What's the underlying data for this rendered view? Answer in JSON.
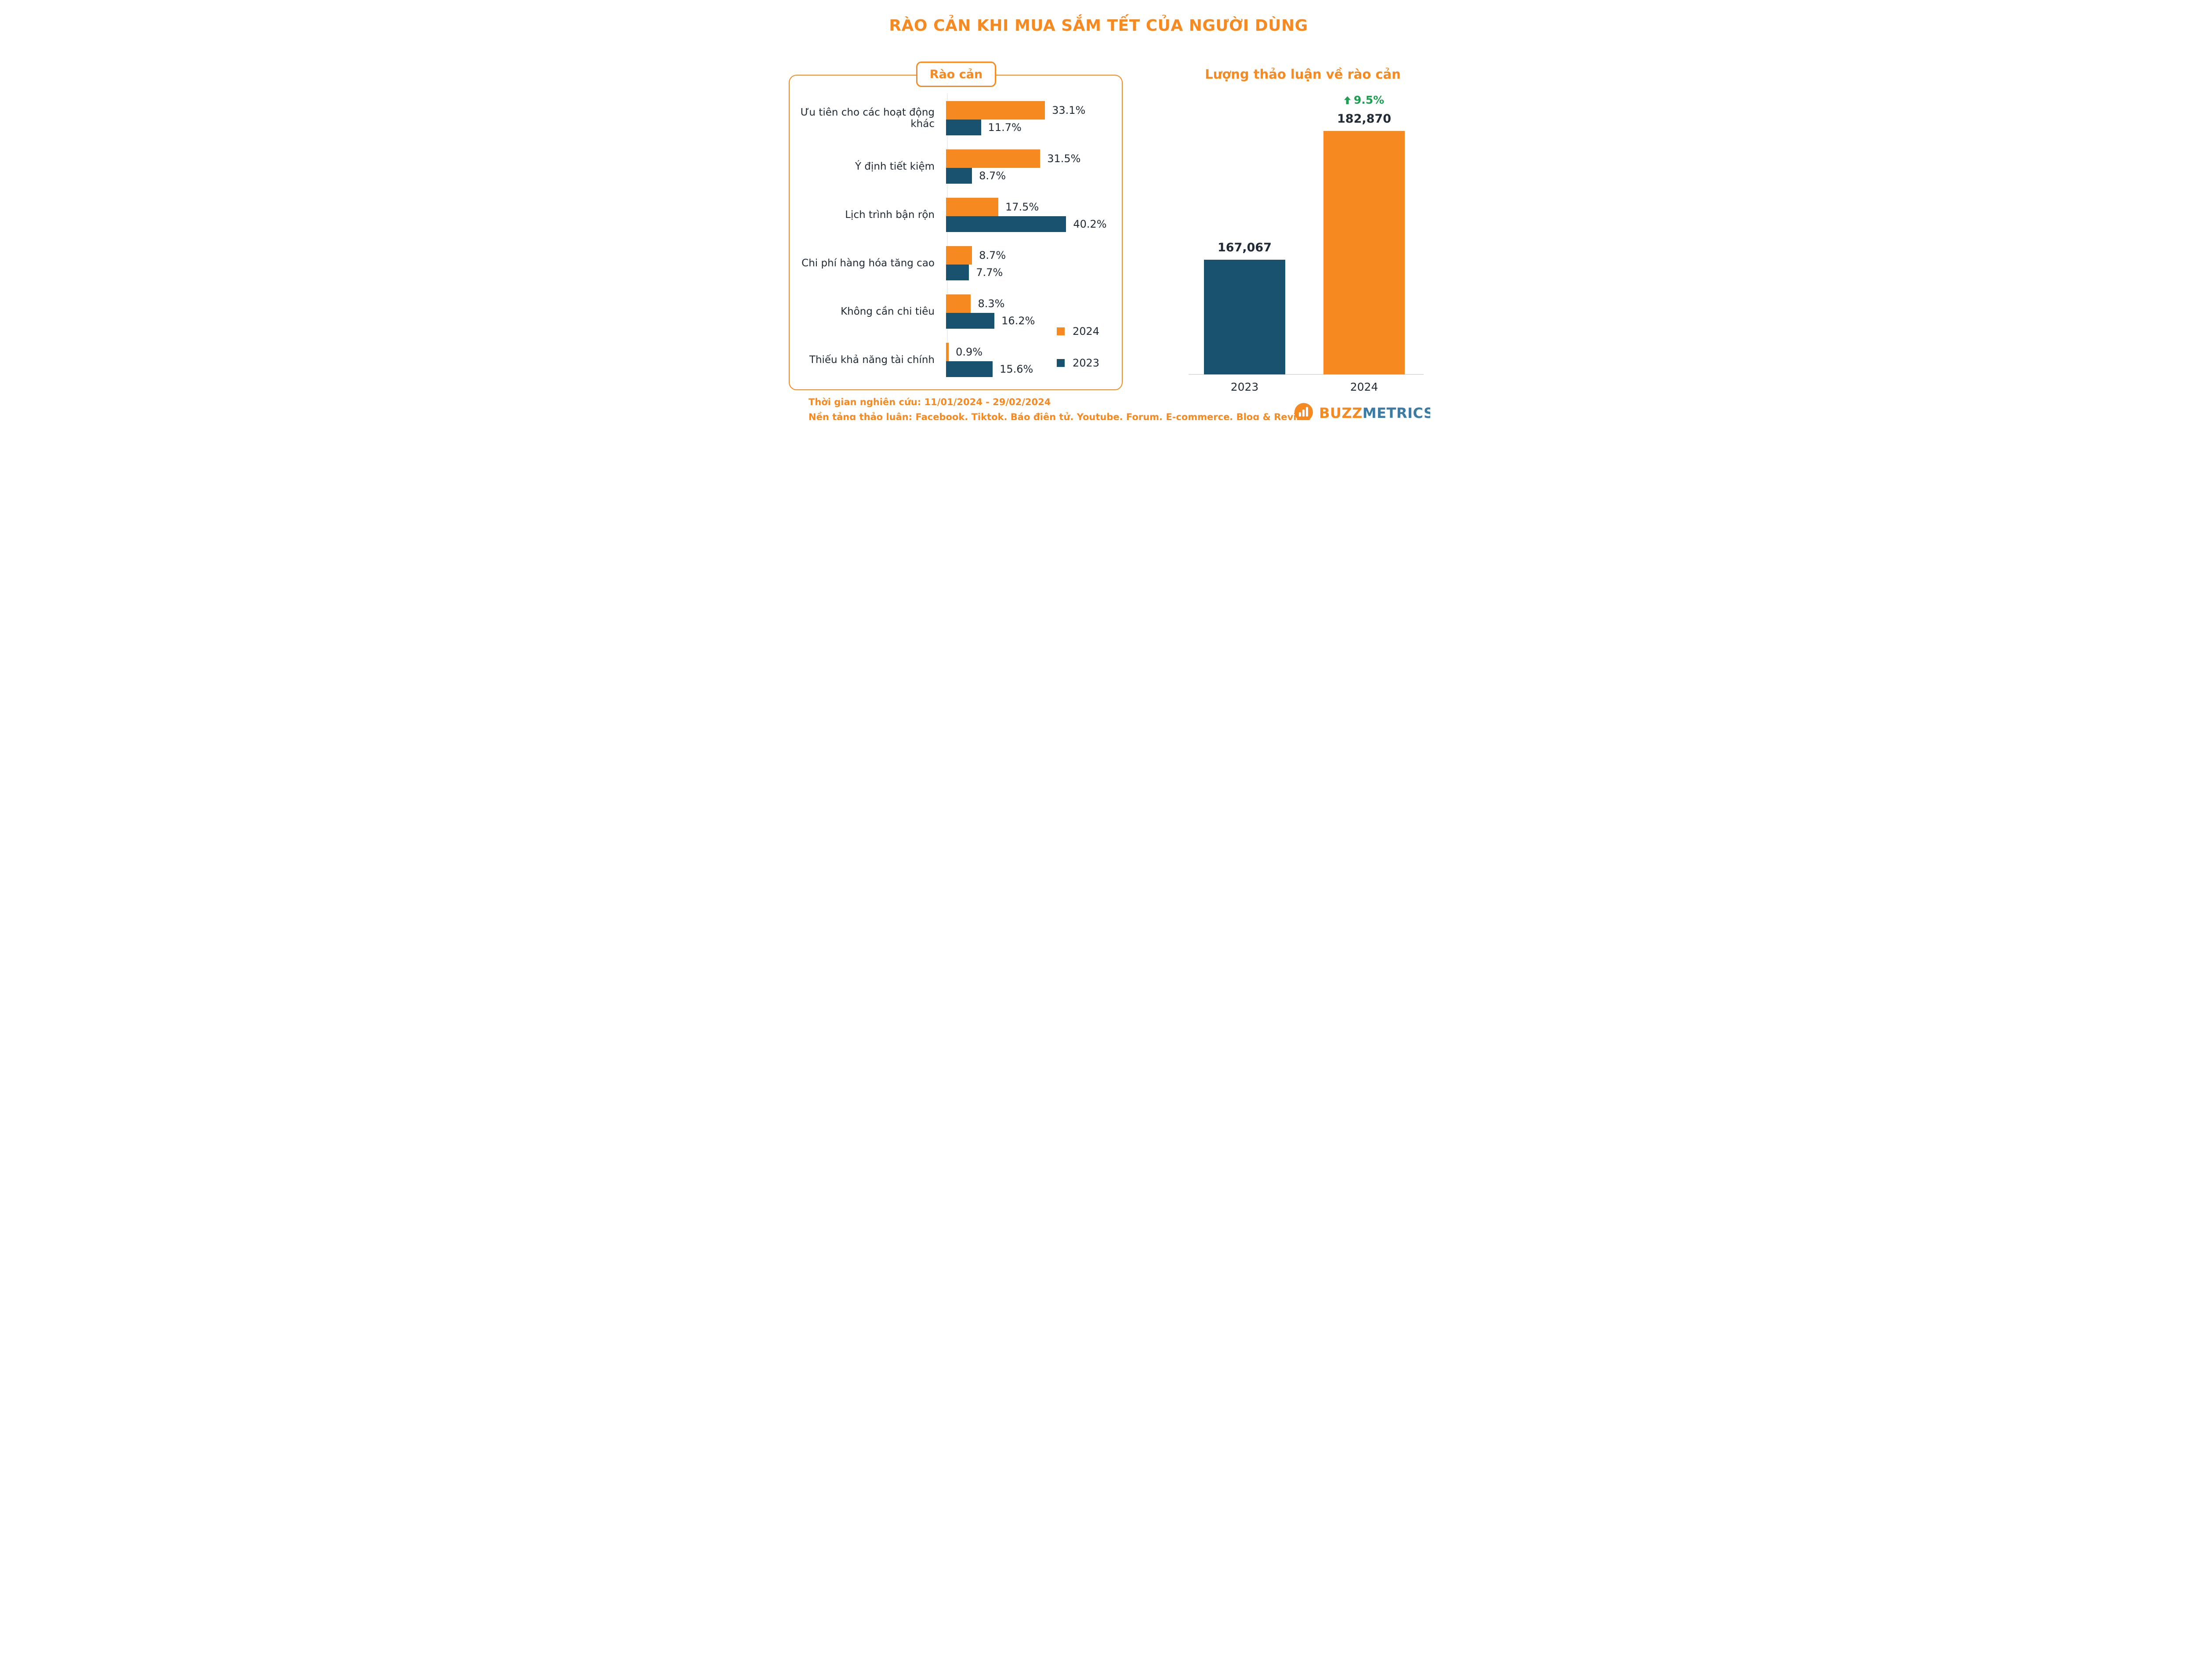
{
  "page_title": "RÀO CẢN KHI MUA SẮM TẾT CỦA NGƯỜI DÙNG",
  "colors": {
    "orange": "#F6891F",
    "navy": "#19526E",
    "ink": "#212B36",
    "green": "#1E9E50",
    "logo_blue": "#3A7CA5",
    "axis_gray": "#DCDFE2"
  },
  "left_chart": {
    "badge_label": "Rào cản"
  },
  "right_chart": {
    "title": "Lượng thảo luận về rào cản"
  },
  "legend": [
    {
      "label": "2024",
      "color": "#F6891F"
    },
    {
      "label": "2023",
      "color": "#19526E"
    }
  ],
  "chart_data": [
    {
      "type": "bar",
      "orientation": "horizontal",
      "title": "Rào cản",
      "categories": [
        "Ưu tiên cho các hoạt động khác",
        "Ý định tiết kiệm",
        "Lịch trình bận rộn",
        "Chi phí hàng hóa tăng cao",
        "Không cần chi tiêu",
        "Thiếu khả năng tài chính"
      ],
      "series": [
        {
          "name": "2024",
          "color": "#F6891F",
          "values": [
            33.1,
            31.5,
            17.5,
            8.7,
            8.3,
            0.9
          ],
          "labels": [
            "33.1%",
            "31.5%",
            "17.5%",
            "8.7%",
            "8.3%",
            "0.9%"
          ]
        },
        {
          "name": "2023",
          "color": "#19526E",
          "values": [
            11.7,
            8.7,
            40.2,
            7.7,
            16.2,
            15.6
          ],
          "labels": [
            "11.7%",
            "8.7%",
            "40.2%",
            "7.7%",
            "16.2%",
            "15.6%"
          ]
        }
      ],
      "value_suffix": "%",
      "xlim": [
        0,
        45
      ],
      "grid": false,
      "legend_position": "bottom-right"
    },
    {
      "type": "bar",
      "orientation": "vertical",
      "title": "Lượng thảo luận về rào cản",
      "categories": [
        "2023",
        "2024"
      ],
      "values": [
        167067,
        182870
      ],
      "value_labels": [
        "167,067",
        "182,870"
      ],
      "colors": [
        "#19526E",
        "#F6891F"
      ],
      "ylim": [
        153000,
        186000
      ],
      "grid": false,
      "annotations": [
        {
          "target": "2024",
          "text": "9.5%",
          "direction": "up",
          "color": "#1E9E50"
        }
      ]
    }
  ],
  "footer": {
    "line1": "Thời gian nghiên cứu: 11/01/2024 - 29/02/2024",
    "line2": "Nền tảng thảo luận: Facebook, Tiktok, Báo điện tử, Youtube, Forum, E-commerce, Blog & Review"
  },
  "logo": {
    "text_primary": "BUZZ",
    "text_secondary": "METRICS",
    "icon": "speech-bubble-bar-chart-icon"
  }
}
